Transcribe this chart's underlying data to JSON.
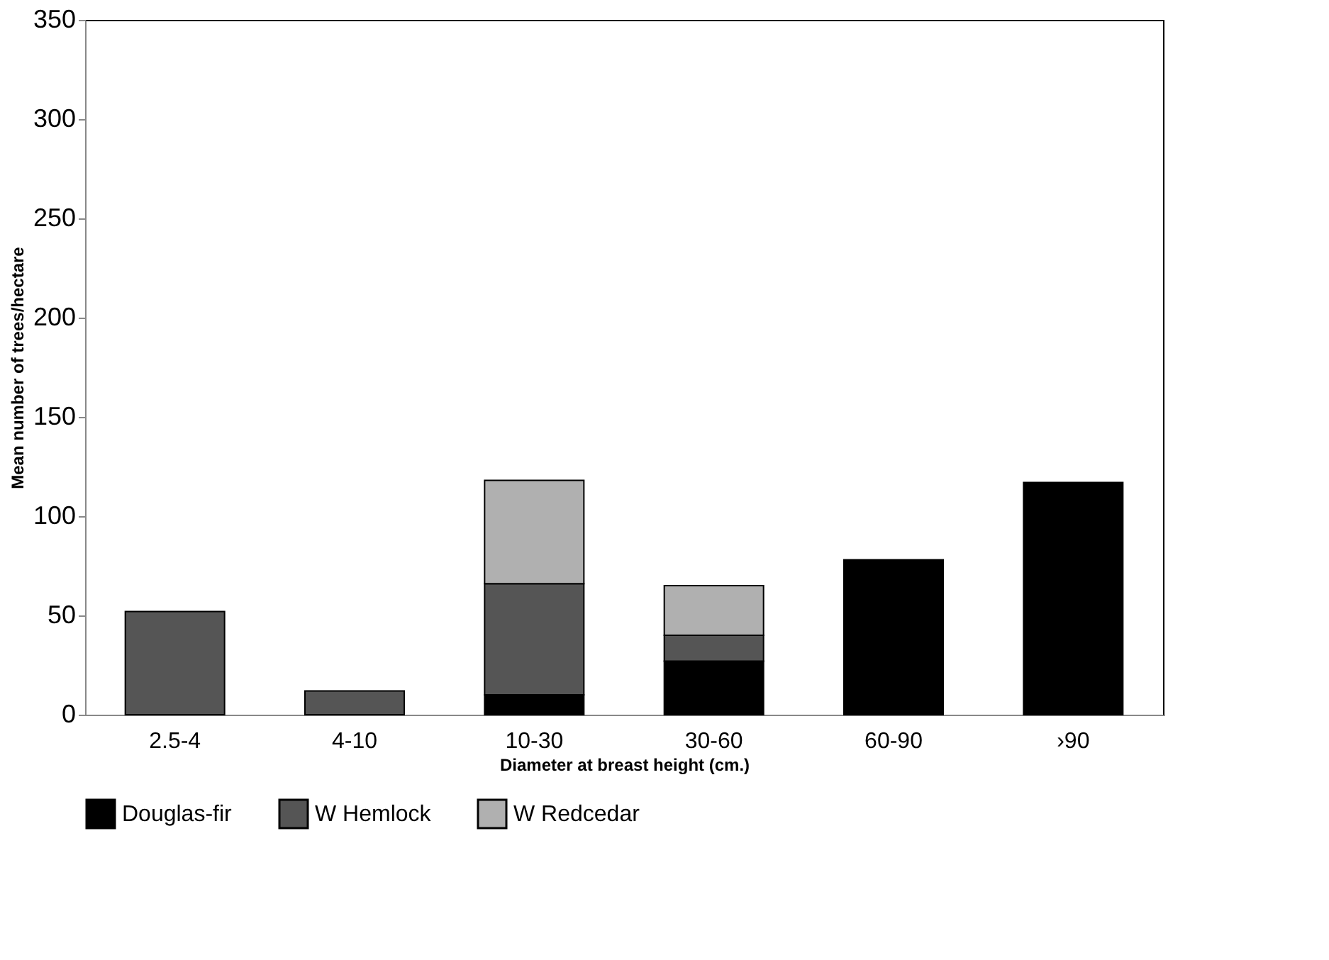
{
  "chart_data": {
    "type": "bar",
    "stacked": true,
    "xlabel": "Diameter at breast height (cm.)",
    "ylabel": "Mean number of trees/hectare",
    "categories": [
      "2.5-4",
      "4-10",
      "10-30",
      "30-60",
      "60-90",
      "›90"
    ],
    "series": [
      {
        "name": "Douglas-fir",
        "color": "#000000",
        "values": [
          null,
          null,
          10,
          27,
          78,
          117
        ]
      },
      {
        "name": "W Hemlock",
        "color": "#555555",
        "values": [
          52,
          12,
          56,
          13,
          null,
          null
        ]
      },
      {
        "name": "W Redcedar",
        "color": "#b0b0b0",
        "values": [
          null,
          null,
          52,
          25,
          null,
          null
        ]
      }
    ],
    "ylim": [
      0,
      350
    ],
    "yticks": [
      0,
      50,
      100,
      150,
      200,
      250,
      300,
      350
    ],
    "grid": false,
    "legend": "bottom"
  }
}
